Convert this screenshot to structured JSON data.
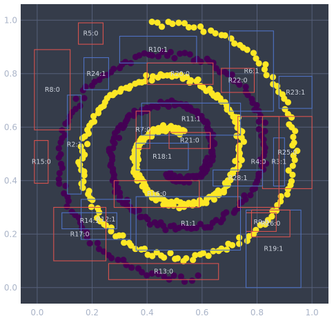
{
  "chart_data": {
    "type": "scatter",
    "title": "",
    "xlabel": "",
    "ylabel": "",
    "xlim": [
      -0.06,
      1.06
    ],
    "ylim": [
      -0.06,
      1.06
    ],
    "xticks": [
      "0.0",
      "0.2",
      "0.4",
      "0.6",
      "0.8",
      "1.0"
    ],
    "yticks": [
      "0.0",
      "0.2",
      "0.4",
      "0.6",
      "0.8",
      "1.0"
    ],
    "grid": true,
    "colors": {
      "background": "#353c4a",
      "grid": "#56607a",
      "class_0": "#440154",
      "class_1": "#fde725",
      "box_label_0": "#d9534f",
      "box_label_1": "#4f72c4"
    },
    "series": [
      {
        "class": 0,
        "spiral": {
          "center": [
            0.5,
            0.5
          ],
          "r_start": 0.08,
          "r_end": 0.47,
          "angle_start_deg": 250,
          "angle_end_deg": 1000,
          "points": 300
        }
      },
      {
        "class": 1,
        "spiral": {
          "center": [
            0.5,
            0.5
          ],
          "r_start": 0.08,
          "r_end": 0.49,
          "angle_start_deg": 70,
          "angle_end_deg": 820,
          "points": 320
        }
      }
    ],
    "regions": [
      {
        "label": "R1:1",
        "cls": 1,
        "x0": 0.36,
        "x1": 0.74,
        "y0": 0.14,
        "y1": 0.34
      },
      {
        "label": "R2:1",
        "cls": 1,
        "x0": 0.11,
        "x1": 0.16,
        "y0": 0.35,
        "y1": 0.72
      },
      {
        "label": "R3:1",
        "cls": 1,
        "x0": 0.86,
        "x1": 0.9,
        "y0": 0.38,
        "y1": 0.56
      },
      {
        "label": "R4:0",
        "cls": 0,
        "x0": 0.73,
        "x1": 0.88,
        "y0": 0.3,
        "y1": 0.64
      },
      {
        "label": "R5:0",
        "cls": 0,
        "x0": 0.15,
        "x1": 0.24,
        "y0": 0.91,
        "y1": 0.99
      },
      {
        "label": "R6:1",
        "cls": 1,
        "x0": 0.7,
        "x1": 0.86,
        "y0": 0.66,
        "y1": 0.96
      },
      {
        "label": "R7:0",
        "cls": 0,
        "x0": 0.36,
        "x1": 0.41,
        "y0": 0.52,
        "y1": 0.66
      },
      {
        "label": "R8:0",
        "cls": 0,
        "x0": -0.01,
        "x1": 0.12,
        "y0": 0.59,
        "y1": 0.89
      },
      {
        "label": "R9:0",
        "cls": 0,
        "x0": 0.76,
        "x1": 0.87,
        "y0": 0.21,
        "y1": 0.28
      },
      {
        "label": "R10:1",
        "cls": 1,
        "x0": 0.3,
        "x1": 0.58,
        "y0": 0.84,
        "y1": 0.94
      },
      {
        "label": "R11:1",
        "cls": 1,
        "x0": 0.38,
        "x1": 0.74,
        "y0": 0.57,
        "y1": 0.69
      },
      {
        "label": "R12:1",
        "cls": 1,
        "x0": 0.16,
        "x1": 0.34,
        "y0": 0.18,
        "y1": 0.33
      },
      {
        "label": "R13:0",
        "cls": 0,
        "x0": 0.26,
        "x1": 0.66,
        "y0": 0.03,
        "y1": 0.09
      },
      {
        "label": "R14:1",
        "cls": 1,
        "x0": 0.09,
        "x1": 0.29,
        "y0": 0.22,
        "y1": 0.28
      },
      {
        "label": "R15:0",
        "cls": 0,
        "x0": -0.01,
        "x1": 0.04,
        "y0": 0.39,
        "y1": 0.55
      },
      {
        "label": "R16:0",
        "cls": 0,
        "x0": 0.28,
        "x1": 0.59,
        "y0": 0.3,
        "y1": 0.4
      },
      {
        "label": "R17:0",
        "cls": 0,
        "x0": 0.06,
        "x1": 0.25,
        "y0": 0.1,
        "y1": 0.3
      },
      {
        "label": "R18:1",
        "cls": 1,
        "x0": 0.36,
        "x1": 0.55,
        "y0": 0.44,
        "y1": 0.54
      },
      {
        "label": "R19:1",
        "cls": 1,
        "x0": 0.76,
        "x1": 0.96,
        "y0": 0.0,
        "y1": 0.29
      },
      {
        "label": "R20:0",
        "cls": 0,
        "x0": 0.4,
        "x1": 0.64,
        "y0": 0.76,
        "y1": 0.84
      },
      {
        "label": "R21:0",
        "cls": 0,
        "x0": 0.48,
        "x1": 0.63,
        "y0": 0.52,
        "y1": 0.58
      },
      {
        "label": "R22:0",
        "cls": 0,
        "x0": 0.67,
        "x1": 0.79,
        "y0": 0.73,
        "y1": 0.82
      },
      {
        "label": "R23:1",
        "cls": 1,
        "x0": 0.88,
        "x1": 1.0,
        "y0": 0.67,
        "y1": 0.79
      },
      {
        "label": "R24:1",
        "cls": 1,
        "x0": 0.17,
        "x1": 0.26,
        "y0": 0.74,
        "y1": 0.86
      },
      {
        "label": "R25:0",
        "cls": 0,
        "x0": 0.82,
        "x1": 1.0,
        "y0": 0.37,
        "y1": 0.64
      },
      {
        "label": "R26:0",
        "cls": 0,
        "x0": 0.78,
        "x1": 0.92,
        "y0": 0.19,
        "y1": 0.29
      },
      {
        "label": "R28:1",
        "cls": 1,
        "x0": 0.64,
        "x1": 0.82,
        "y0": 0.38,
        "y1": 0.44
      }
    ]
  }
}
